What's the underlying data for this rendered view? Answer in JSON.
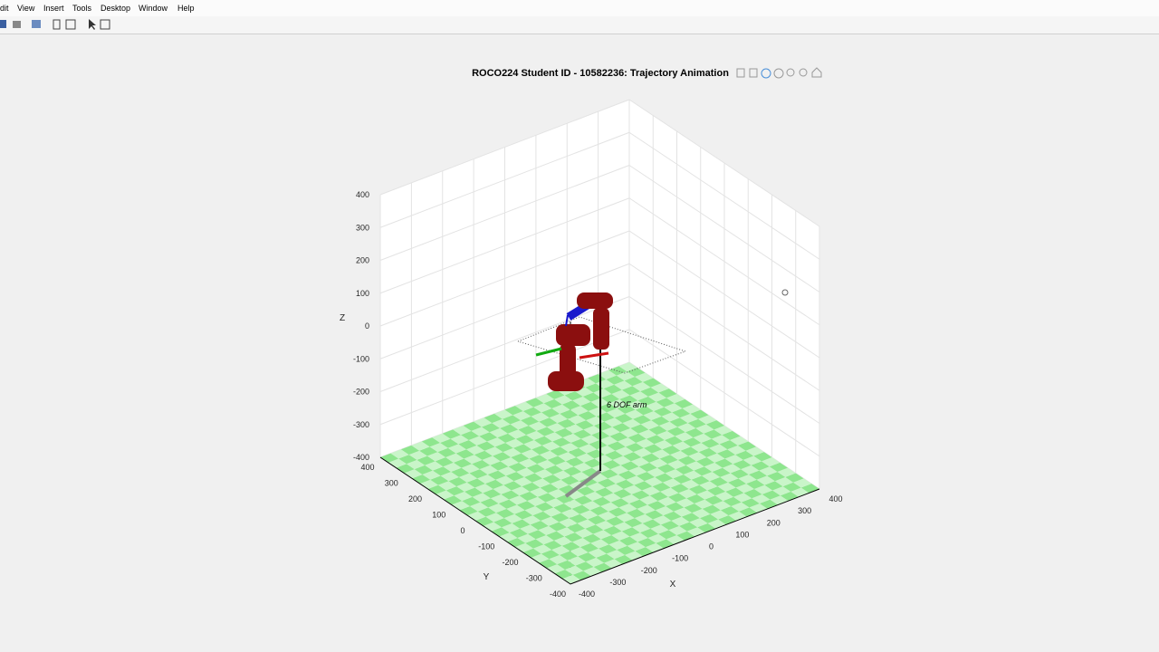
{
  "menu": [
    "dit",
    "View",
    "Insert",
    "Tools",
    "Desktop",
    "Window",
    "Help"
  ],
  "plot": {
    "title": "ROCO224 Student ID - 10582236: Trajectory Animation",
    "x_label": "X",
    "y_label": "Y",
    "z_label": "Z",
    "x_ticks": [
      -400,
      -300,
      -200,
      -100,
      0,
      100,
      200,
      300,
      400
    ],
    "y_ticks": [
      -400,
      -300,
      -200,
      -100,
      0,
      100,
      200,
      300,
      400
    ],
    "z_ticks": [
      -400,
      -300,
      -200,
      -100,
      0,
      100,
      200,
      300,
      400
    ],
    "annotation": "6 DOF arm"
  }
}
